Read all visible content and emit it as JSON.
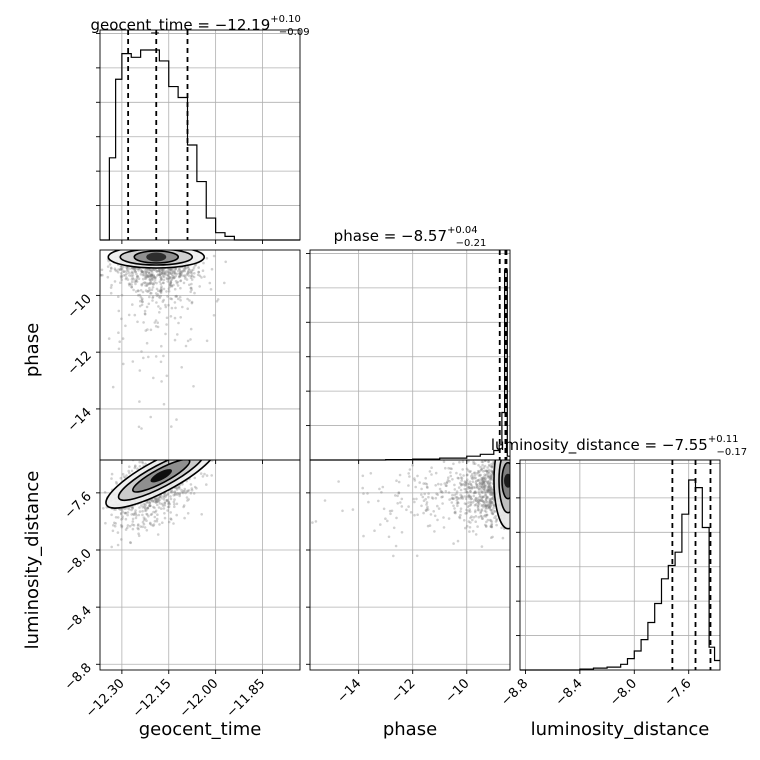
{
  "chart_data": {
    "type": "corner",
    "parameters": [
      "geocent_time",
      "phase",
      "luminosity_distance"
    ],
    "axis_labels": {
      "geocent_time": "geocent_time",
      "phase": "phase",
      "luminosity_distance": "luminosity_distance"
    },
    "titles": [
      {
        "param": "geocent_time",
        "prefix": "geocent_time = ",
        "median": "−12.19",
        "upper": "+0.10",
        "lower": "−0.09"
      },
      {
        "param": "phase",
        "prefix": "phase = ",
        "median": "−8.57",
        "upper": "+0.04",
        "lower": "−0.21"
      },
      {
        "param": "luminosity_distance",
        "prefix": "luminosity_distance = ",
        "median": "−7.55",
        "upper": "+0.11",
        "lower": "−0.17"
      }
    ],
    "ranges": {
      "geocent_time": [
        -12.37,
        -11.73
      ],
      "phase": [
        -15.8,
        -8.4
      ],
      "luminosity_distance": [
        -8.84,
        -7.37
      ]
    },
    "ticks": {
      "geocent_time": [
        -12.3,
        -12.15,
        -12.0,
        -11.85
      ],
      "phase": [
        -14,
        -12,
        -10
      ],
      "luminosity_distance": [
        -8.8,
        -8.4,
        -8.0,
        -7.6
      ]
    },
    "tick_labels": {
      "geocent_time": [
        "−12.30",
        "−12.15",
        "−12.00",
        "−11.85"
      ],
      "phase": [
        "−14",
        "−12",
        "−10"
      ],
      "luminosity_distance": [
        "−8.8",
        "−8.4",
        "−8.0",
        "−7.6"
      ]
    },
    "quantiles": {
      "geocent_time": [
        -12.28,
        -12.19,
        -12.09
      ],
      "phase": [
        -8.78,
        -8.57,
        -8.53
      ],
      "luminosity_distance": [
        -7.72,
        -7.55,
        -7.44
      ]
    },
    "histograms": {
      "geocent_time": {
        "edges": [
          -12.37,
          -12.34,
          -12.32,
          -12.3,
          -12.27,
          -12.24,
          -12.21,
          -12.18,
          -12.15,
          -12.12,
          -12.09,
          -12.06,
          -12.03,
          -12.0,
          -11.97,
          -11.94,
          -11.91,
          -11.88,
          -11.85,
          -11.82,
          -11.79,
          -11.76,
          -11.73
        ],
        "counts": [
          0.0,
          0.45,
          0.88,
          1.02,
          1.0,
          1.04,
          1.04,
          0.98,
          0.84,
          0.78,
          0.52,
          0.32,
          0.12,
          0.04,
          0.02,
          0.0,
          0.0,
          0.0,
          0.0,
          0.0,
          0.0,
          0.0
        ]
      },
      "phase": {
        "edges": [
          -15.8,
          -15.0,
          -14.0,
          -13.0,
          -12.0,
          -11.0,
          -10.0,
          -9.5,
          -9.0,
          -8.8,
          -8.7,
          -8.6,
          -8.5,
          -8.4
        ],
        "counts": [
          0.0,
          0.0,
          0.0,
          0.002,
          0.005,
          0.01,
          0.02,
          0.03,
          0.05,
          0.08,
          0.25,
          1.0,
          0.02
        ]
      },
      "luminosity_distance": {
        "edges": [
          -8.84,
          -8.4,
          -8.3,
          -8.2,
          -8.1,
          -8.05,
          -8.0,
          -7.95,
          -7.9,
          -7.85,
          -7.8,
          -7.75,
          -7.7,
          -7.65,
          -7.6,
          -7.55,
          -7.5,
          -7.45,
          -7.41,
          -7.37
        ],
        "counts": [
          0.0,
          0.005,
          0.01,
          0.015,
          0.03,
          0.06,
          0.1,
          0.16,
          0.25,
          0.35,
          0.48,
          0.55,
          0.62,
          0.82,
          1.0,
          0.96,
          0.75,
          0.12,
          0.05
        ]
      }
    },
    "grid": true
  }
}
